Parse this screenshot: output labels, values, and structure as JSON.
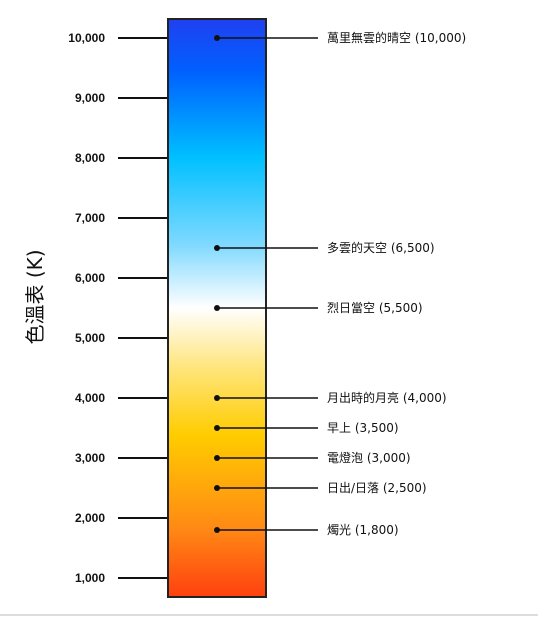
{
  "diagram": {
    "axis_title": "色溫表 (K)",
    "scale_min": 1000,
    "scale_max": 10000,
    "colors": {
      "stops": [
        "#ff4010",
        "#ff8a14",
        "#ffcc00",
        "#ffe680",
        "#ffffff",
        "#7fd9ff",
        "#00c0ff",
        "#0060ff",
        "#2040f0"
      ],
      "tick_line": "#111111",
      "bar_border": "#222222"
    },
    "ticks": [
      {
        "value": 10000,
        "label": "10,000"
      },
      {
        "value": 9000,
        "label": "9,000"
      },
      {
        "value": 8000,
        "label": "8,000"
      },
      {
        "value": 7000,
        "label": "7,000"
      },
      {
        "value": 6000,
        "label": "6,000"
      },
      {
        "value": 5000,
        "label": "5,000"
      },
      {
        "value": 4000,
        "label": "4,000"
      },
      {
        "value": 3000,
        "label": "3,000"
      },
      {
        "value": 2000,
        "label": "2,000"
      },
      {
        "value": 1000,
        "label": "1,000"
      }
    ],
    "annotations": [
      {
        "value": 10000,
        "label": "萬里無雲的晴空 (10,000)"
      },
      {
        "value": 6500,
        "label": "多雲的天空 (6,500)"
      },
      {
        "value": 5500,
        "label": "烈日當空 (5,500)"
      },
      {
        "value": 4000,
        "label": "月出時的月亮 (4,000)"
      },
      {
        "value": 3500,
        "label": "早上 (3,500)"
      },
      {
        "value": 3000,
        "label": "電燈泡 (3,000)"
      },
      {
        "value": 2500,
        "label": "日出/日落 (2,500)"
      },
      {
        "value": 1800,
        "label": "燭光 (1,800)"
      }
    ]
  }
}
